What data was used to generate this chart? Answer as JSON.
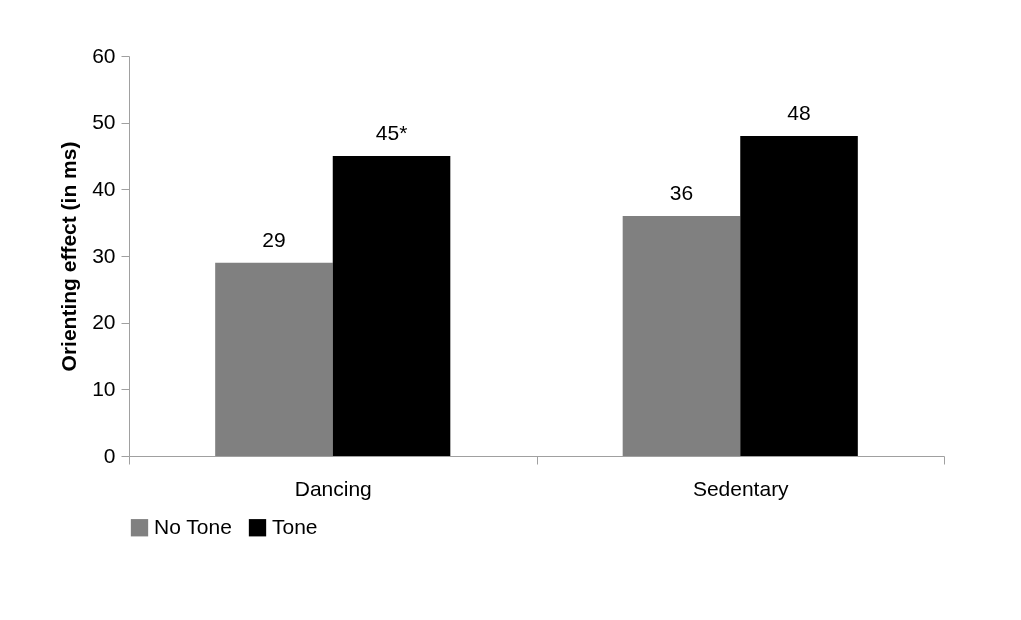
{
  "chart_data": {
    "type": "bar",
    "ylabel": "Orienting effect (in ms)",
    "categories": [
      "Dancing",
      "Sedentary"
    ],
    "series": [
      {
        "name": "No Tone",
        "color": "#808080",
        "values": [
          29,
          36
        ],
        "value_labels": [
          "29",
          "36"
        ]
      },
      {
        "name": "Tone",
        "color": "#000000",
        "values": [
          45,
          48
        ],
        "value_labels": [
          "45*",
          "48"
        ]
      }
    ],
    "ylim": [
      0,
      60
    ],
    "yticks": [
      0,
      10,
      20,
      30,
      40,
      50,
      60
    ],
    "legend": "bottom"
  }
}
